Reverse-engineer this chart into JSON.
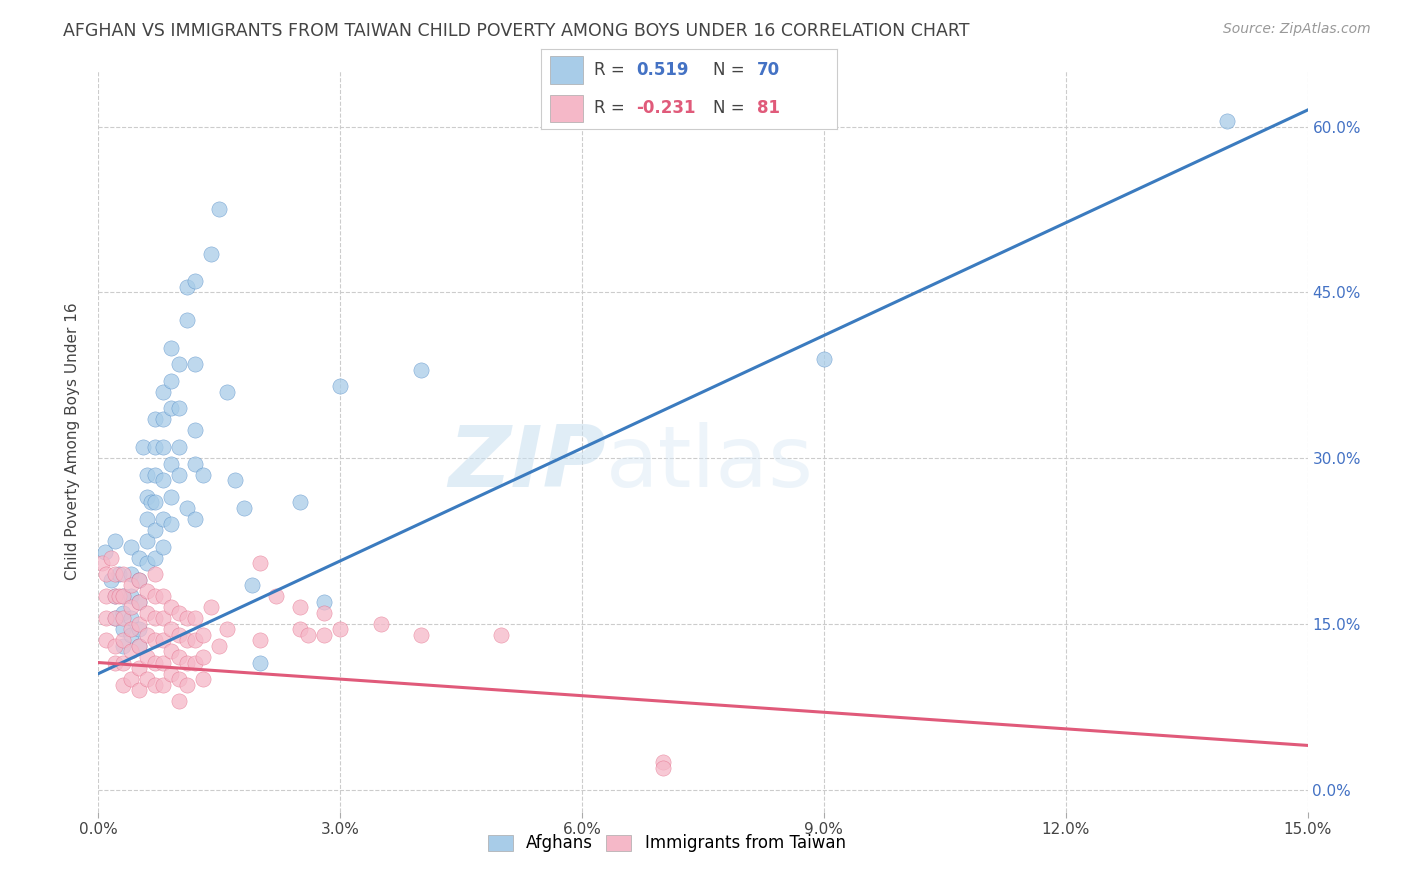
{
  "title": "AFGHAN VS IMMIGRANTS FROM TAIWAN CHILD POVERTY AMONG BOYS UNDER 16 CORRELATION CHART",
  "source": "Source: ZipAtlas.com",
  "ylabel": "Child Poverty Among Boys Under 16",
  "xlim": [
    0.0,
    0.15
  ],
  "ylim": [
    -0.02,
    0.65
  ],
  "xticks": [
    0.0,
    0.03,
    0.06,
    0.09,
    0.12,
    0.15
  ],
  "yticks": [
    0.0,
    0.15,
    0.3,
    0.45,
    0.6
  ],
  "ytick_labels": [
    "0.0%",
    "15.0%",
    "30.0%",
    "45.0%",
    "60.0%"
  ],
  "xtick_labels": [
    "0.0%",
    "3.0%",
    "6.0%",
    "9.0%",
    "12.0%",
    "15.0%"
  ],
  "r1": "0.519",
  "n1": "70",
  "r2": "-0.231",
  "n2": "81",
  "blue_color": "#a8cce8",
  "blue_line_color": "#3b7bbf",
  "pink_color": "#f5b8c8",
  "pink_line_color": "#e05a7a",
  "blue_scatter": [
    [
      0.0008,
      0.215
    ],
    [
      0.0015,
      0.19
    ],
    [
      0.002,
      0.225
    ],
    [
      0.002,
      0.175
    ],
    [
      0.002,
      0.155
    ],
    [
      0.0025,
      0.195
    ],
    [
      0.003,
      0.175
    ],
    [
      0.003,
      0.16
    ],
    [
      0.003,
      0.145
    ],
    [
      0.003,
      0.13
    ],
    [
      0.004,
      0.22
    ],
    [
      0.004,
      0.195
    ],
    [
      0.004,
      0.175
    ],
    [
      0.004,
      0.155
    ],
    [
      0.004,
      0.14
    ],
    [
      0.005,
      0.21
    ],
    [
      0.005,
      0.19
    ],
    [
      0.005,
      0.17
    ],
    [
      0.005,
      0.145
    ],
    [
      0.005,
      0.13
    ],
    [
      0.0055,
      0.31
    ],
    [
      0.006,
      0.285
    ],
    [
      0.006,
      0.265
    ],
    [
      0.006,
      0.245
    ],
    [
      0.006,
      0.225
    ],
    [
      0.006,
      0.205
    ],
    [
      0.0065,
      0.26
    ],
    [
      0.007,
      0.335
    ],
    [
      0.007,
      0.31
    ],
    [
      0.007,
      0.285
    ],
    [
      0.007,
      0.26
    ],
    [
      0.007,
      0.235
    ],
    [
      0.007,
      0.21
    ],
    [
      0.008,
      0.36
    ],
    [
      0.008,
      0.335
    ],
    [
      0.008,
      0.31
    ],
    [
      0.008,
      0.28
    ],
    [
      0.008,
      0.245
    ],
    [
      0.008,
      0.22
    ],
    [
      0.009,
      0.4
    ],
    [
      0.009,
      0.37
    ],
    [
      0.009,
      0.345
    ],
    [
      0.009,
      0.295
    ],
    [
      0.009,
      0.265
    ],
    [
      0.009,
      0.24
    ],
    [
      0.01,
      0.385
    ],
    [
      0.01,
      0.345
    ],
    [
      0.01,
      0.31
    ],
    [
      0.01,
      0.285
    ],
    [
      0.011,
      0.455
    ],
    [
      0.011,
      0.425
    ],
    [
      0.011,
      0.255
    ],
    [
      0.012,
      0.46
    ],
    [
      0.012,
      0.385
    ],
    [
      0.012,
      0.325
    ],
    [
      0.012,
      0.295
    ],
    [
      0.012,
      0.245
    ],
    [
      0.013,
      0.285
    ],
    [
      0.014,
      0.485
    ],
    [
      0.015,
      0.525
    ],
    [
      0.016,
      0.36
    ],
    [
      0.017,
      0.28
    ],
    [
      0.018,
      0.255
    ],
    [
      0.019,
      0.185
    ],
    [
      0.02,
      0.115
    ],
    [
      0.025,
      0.26
    ],
    [
      0.028,
      0.17
    ],
    [
      0.03,
      0.365
    ],
    [
      0.04,
      0.38
    ],
    [
      0.09,
      0.39
    ],
    [
      0.14,
      0.605
    ]
  ],
  "pink_scatter": [
    [
      0.0005,
      0.205
    ],
    [
      0.001,
      0.195
    ],
    [
      0.001,
      0.175
    ],
    [
      0.001,
      0.155
    ],
    [
      0.001,
      0.135
    ],
    [
      0.0015,
      0.21
    ],
    [
      0.002,
      0.195
    ],
    [
      0.002,
      0.175
    ],
    [
      0.002,
      0.155
    ],
    [
      0.002,
      0.13
    ],
    [
      0.002,
      0.115
    ],
    [
      0.0025,
      0.175
    ],
    [
      0.003,
      0.195
    ],
    [
      0.003,
      0.175
    ],
    [
      0.003,
      0.155
    ],
    [
      0.003,
      0.135
    ],
    [
      0.003,
      0.115
    ],
    [
      0.003,
      0.095
    ],
    [
      0.004,
      0.185
    ],
    [
      0.004,
      0.165
    ],
    [
      0.004,
      0.145
    ],
    [
      0.004,
      0.125
    ],
    [
      0.004,
      0.1
    ],
    [
      0.005,
      0.19
    ],
    [
      0.005,
      0.17
    ],
    [
      0.005,
      0.15
    ],
    [
      0.005,
      0.13
    ],
    [
      0.005,
      0.11
    ],
    [
      0.005,
      0.09
    ],
    [
      0.006,
      0.18
    ],
    [
      0.006,
      0.16
    ],
    [
      0.006,
      0.14
    ],
    [
      0.006,
      0.12
    ],
    [
      0.006,
      0.1
    ],
    [
      0.007,
      0.195
    ],
    [
      0.007,
      0.175
    ],
    [
      0.007,
      0.155
    ],
    [
      0.007,
      0.135
    ],
    [
      0.007,
      0.115
    ],
    [
      0.007,
      0.095
    ],
    [
      0.008,
      0.175
    ],
    [
      0.008,
      0.155
    ],
    [
      0.008,
      0.135
    ],
    [
      0.008,
      0.115
    ],
    [
      0.008,
      0.095
    ],
    [
      0.009,
      0.165
    ],
    [
      0.009,
      0.145
    ],
    [
      0.009,
      0.125
    ],
    [
      0.009,
      0.105
    ],
    [
      0.01,
      0.16
    ],
    [
      0.01,
      0.14
    ],
    [
      0.01,
      0.12
    ],
    [
      0.01,
      0.1
    ],
    [
      0.01,
      0.08
    ],
    [
      0.011,
      0.155
    ],
    [
      0.011,
      0.135
    ],
    [
      0.011,
      0.115
    ],
    [
      0.011,
      0.095
    ],
    [
      0.012,
      0.155
    ],
    [
      0.012,
      0.135
    ],
    [
      0.012,
      0.115
    ],
    [
      0.013,
      0.14
    ],
    [
      0.013,
      0.12
    ],
    [
      0.013,
      0.1
    ],
    [
      0.014,
      0.165
    ],
    [
      0.015,
      0.13
    ],
    [
      0.016,
      0.145
    ],
    [
      0.02,
      0.205
    ],
    [
      0.02,
      0.135
    ],
    [
      0.022,
      0.175
    ],
    [
      0.025,
      0.165
    ],
    [
      0.025,
      0.145
    ],
    [
      0.026,
      0.14
    ],
    [
      0.028,
      0.16
    ],
    [
      0.028,
      0.14
    ],
    [
      0.03,
      0.145
    ],
    [
      0.035,
      0.15
    ],
    [
      0.04,
      0.14
    ],
    [
      0.05,
      0.14
    ],
    [
      0.07,
      0.025
    ],
    [
      0.07,
      0.02
    ]
  ],
  "blue_line_x": [
    0.0,
    0.15
  ],
  "blue_line_y": [
    0.105,
    0.615
  ],
  "pink_line_x": [
    0.0,
    0.15
  ],
  "pink_line_y": [
    0.115,
    0.04
  ],
  "watermark_zip": "ZIP",
  "watermark_atlas": "atlas",
  "background_color": "#ffffff",
  "grid_color": "#cccccc",
  "title_color": "#444444",
  "source_color": "#999999",
  "ylabel_color": "#444444",
  "tick_color": "#444444",
  "right_tick_color": "#4472c4"
}
